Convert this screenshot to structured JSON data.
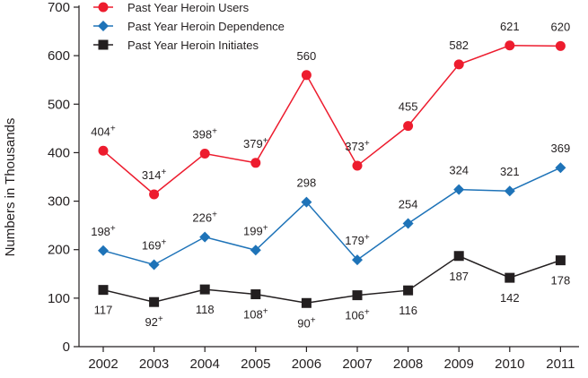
{
  "chart_data": {
    "type": "line",
    "x": [
      "2002",
      "2003",
      "2004",
      "2005",
      "2006",
      "2007",
      "2008",
      "2009",
      "2010",
      "2011"
    ],
    "ylabel": "Numbers in Thousands",
    "ylim": [
      0,
      700
    ],
    "yticks": [
      "0",
      "100",
      "200",
      "300",
      "400",
      "500",
      "600",
      "700"
    ],
    "grid": false,
    "legend_position": "top-left",
    "series": [
      {
        "name": "Past Year Heroin Users",
        "color": "#ed1c2e",
        "marker": "circle",
        "values": [
          404,
          314,
          398,
          379,
          560,
          373,
          455,
          582,
          621,
          620
        ],
        "labels": [
          "404",
          "314",
          "398",
          "379",
          "560",
          "373",
          "455",
          "582",
          "621",
          "620"
        ],
        "significant": [
          true,
          true,
          true,
          true,
          false,
          true,
          false,
          false,
          false,
          false
        ],
        "label_position": "above"
      },
      {
        "name": "Past Year Heroin Dependence",
        "color": "#1e73b8",
        "marker": "diamond",
        "values": [
          198,
          169,
          226,
          199,
          298,
          179,
          254,
          324,
          321,
          369
        ],
        "labels": [
          "198",
          "169",
          "226",
          "199",
          "298",
          "179",
          "254",
          "324",
          "321",
          "369"
        ],
        "significant": [
          true,
          true,
          true,
          true,
          false,
          true,
          false,
          false,
          false,
          false
        ],
        "label_position": "above"
      },
      {
        "name": "Past Year Heroin Initiates",
        "color": "#231f20",
        "marker": "square",
        "values": [
          117,
          92,
          118,
          108,
          90,
          106,
          116,
          187,
          142,
          178
        ],
        "labels": [
          "117",
          "92",
          "118",
          "108",
          "90",
          "106",
          "116",
          "187",
          "142",
          "178"
        ],
        "significant": [
          false,
          true,
          false,
          true,
          true,
          true,
          false,
          false,
          false,
          false
        ],
        "label_position": "below"
      }
    ],
    "significance_marker": "+"
  }
}
